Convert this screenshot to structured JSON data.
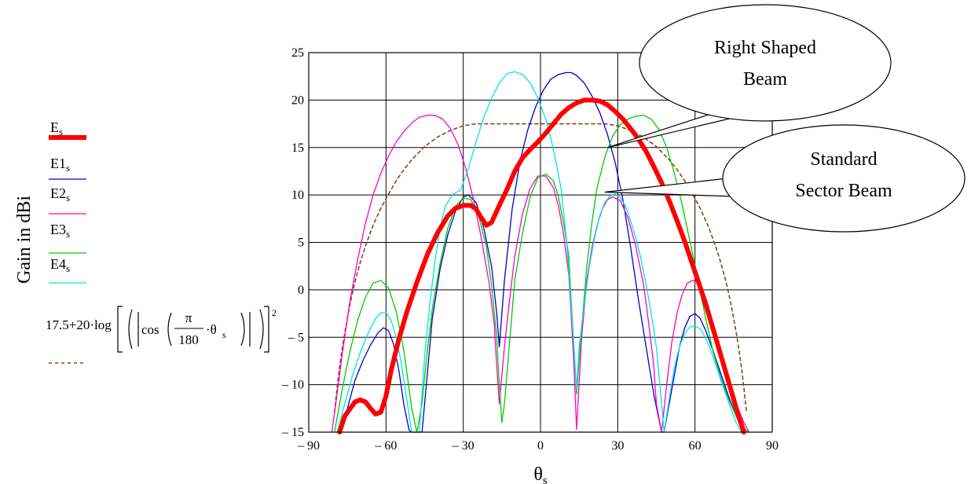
{
  "chart_data": {
    "type": "line",
    "xlabel": "θ",
    "xlabel_sub": "s",
    "ylabel": "Gain in dBi",
    "xlim": [
      -90,
      90
    ],
    "ylim": [
      -15,
      25
    ],
    "xticks": [
      -90,
      -60,
      -30,
      0,
      30,
      60,
      90
    ],
    "yticks": [
      -15,
      -10,
      -5,
      0,
      5,
      10,
      15,
      20,
      25
    ],
    "xtick_labels": [
      "– 90",
      "– 60",
      "– 30",
      "0",
      "30",
      "60",
      "90"
    ],
    "ytick_labels": [
      "– 15",
      "– 10",
      "– 5",
      "0",
      "5",
      "10",
      "15",
      "20",
      "25"
    ],
    "grid": true,
    "legend_position": "left",
    "series": [
      {
        "name": "E",
        "name_sub": "s",
        "color": "#ff0000",
        "width": 6,
        "dash": "",
        "x": [
          -78,
          -76,
          -72,
          -70,
          -68,
          -66,
          -64,
          -62,
          -60,
          -58,
          -55,
          -52,
          -48,
          -44,
          -40,
          -36,
          -33,
          -30,
          -27,
          -25,
          -23,
          -21,
          -19,
          -16,
          -13,
          -10,
          -7,
          -4,
          -1,
          2,
          5,
          8,
          11,
          14,
          17,
          20,
          23,
          26,
          29,
          32,
          35,
          38,
          41,
          44,
          47,
          50,
          53,
          56,
          59,
          62,
          65,
          68,
          71,
          74,
          77,
          79
        ],
        "y": [
          -15,
          -13.3,
          -11.8,
          -11.6,
          -11.8,
          -12.5,
          -13.1,
          -12.9,
          -11.2,
          -8.5,
          -5.2,
          -2.4,
          0.8,
          3.7,
          6,
          7.8,
          8.6,
          8.9,
          8.9,
          8.5,
          7.6,
          6.8,
          7.1,
          8.9,
          10.6,
          12.5,
          13.9,
          14.8,
          15.6,
          16.5,
          17.5,
          18.5,
          19.2,
          19.7,
          20,
          20,
          19.9,
          19.5,
          18.8,
          18,
          17,
          15.9,
          14.6,
          13,
          11.3,
          9.4,
          7.3,
          5.1,
          2.7,
          0.3,
          -2.3,
          -5,
          -7.8,
          -10.6,
          -13.4,
          -15
        ]
      },
      {
        "name": "E1",
        "name_sub": "s",
        "color": "#0000cc",
        "width": 1.3,
        "dash": "",
        "x": [
          -78,
          -75,
          -72,
          -69,
          -66,
          -63,
          -61,
          -59,
          -57,
          -55,
          -53,
          -51,
          -50,
          -46,
          -44,
          -42,
          -39,
          -36,
          -33,
          -30,
          -28,
          -25,
          -22,
          -19,
          -17,
          -16,
          -14,
          -11,
          -8,
          -5,
          -2,
          1,
          4,
          7,
          10,
          12,
          14,
          17,
          20,
          23,
          26,
          29,
          32,
          35,
          38,
          41,
          44,
          47,
          48,
          52,
          54,
          56,
          58,
          60,
          62,
          64,
          67,
          70,
          73,
          76,
          79
        ],
        "y": [
          -15,
          -12.5,
          -9.5,
          -7.5,
          -5.8,
          -4.5,
          -4,
          -4.3,
          -5.8,
          -8.5,
          -12.2,
          -14.8,
          -15,
          -15,
          -9,
          -3,
          2.2,
          5.8,
          8.3,
          9.8,
          10,
          9.2,
          6.5,
          2.5,
          -2.5,
          -6,
          1,
          8.5,
          13.5,
          16.8,
          19.2,
          21,
          22.2,
          22.7,
          22.9,
          22.9,
          22.6,
          21.8,
          20.4,
          18.7,
          16.4,
          13.4,
          9.5,
          4.5,
          -1,
          -6,
          -11,
          -15,
          -15,
          -9,
          -6,
          -4,
          -2.8,
          -2.5,
          -3,
          -4.2,
          -6.4,
          -8.8,
          -11.2,
          -13.3,
          -15
        ]
      },
      {
        "name": "E2",
        "name_sub": "s",
        "color": "#ff00cc",
        "width": 1.3,
        "dash": "",
        "x": [
          -81,
          -79,
          -77,
          -74,
          -71,
          -68,
          -65,
          -62,
          -59,
          -56,
          -53,
          -50,
          -47,
          -44,
          -41,
          -38,
          -35,
          -32,
          -29,
          -26,
          -23,
          -20,
          -18,
          -17,
          -16,
          -14,
          -12,
          -10,
          -7,
          -4,
          -1,
          2,
          5,
          7,
          9,
          11,
          12,
          13,
          14,
          16,
          18,
          20,
          22,
          24,
          26,
          28,
          31,
          34,
          37,
          40,
          42,
          44,
          45,
          47,
          49,
          51,
          53,
          55,
          57,
          59,
          61,
          63,
          65,
          67,
          70,
          73,
          76,
          79,
          81
        ],
        "y": [
          -15,
          -11,
          -6.8,
          -1.2,
          3.2,
          7,
          10,
          12.3,
          14.1,
          15.6,
          16.7,
          17.6,
          18.2,
          18.4,
          18.4,
          18,
          17,
          15.3,
          12.8,
          9.5,
          5.5,
          0.8,
          -3.5,
          -8,
          -12,
          -6,
          -1,
          3.5,
          8,
          10.7,
          12,
          12,
          10.8,
          8.8,
          5.8,
          1.5,
          -3,
          -8,
          -14.7,
          -5,
          1,
          4.5,
          6.8,
          8.5,
          9.5,
          9.8,
          9.4,
          7.6,
          4.6,
          0.6,
          -3.5,
          -8,
          -12,
          -15,
          -10,
          -5.5,
          -2.5,
          -0.5,
          0.7,
          1,
          0.8,
          0,
          -1.5,
          -3.5,
          -6.5,
          -9.5,
          -12,
          -14,
          -15
        ]
      },
      {
        "name": "E3",
        "name_sub": "s",
        "color": "#00cc00",
        "width": 1.3,
        "dash": "",
        "x": [
          -80,
          -77,
          -74,
          -71,
          -68,
          -65,
          -62,
          -59,
          -56,
          -53,
          -50,
          -48,
          -46,
          -44,
          -42,
          -39,
          -36,
          -33,
          -30,
          -27,
          -24,
          -21,
          -19,
          -17,
          -16,
          -15,
          -14,
          -12,
          -10,
          -7,
          -4,
          -1,
          2,
          5,
          7,
          9,
          11,
          12,
          13,
          14,
          16,
          18,
          20,
          22,
          25,
          28,
          31,
          34,
          37,
          40,
          43,
          46,
          49,
          52,
          55,
          58,
          61,
          64,
          67,
          70,
          73,
          76,
          79,
          81
        ],
        "y": [
          -15,
          -10.5,
          -6.5,
          -3.2,
          -0.8,
          0.7,
          1,
          0.2,
          -2.3,
          -6.5,
          -12.5,
          -15,
          -12,
          -6.5,
          -2,
          2.8,
          6.5,
          8.8,
          9.7,
          9.5,
          7.8,
          4.5,
          0.5,
          -5,
          -10,
          -14,
          -12,
          -5.5,
          1,
          6,
          9.8,
          11.8,
          12.2,
          11.5,
          9.8,
          7,
          3.5,
          -1.5,
          -6,
          -11,
          -4,
          2.5,
          7.2,
          10.8,
          14,
          16.2,
          17.4,
          18,
          18.3,
          18.4,
          18,
          16.9,
          15,
          12.3,
          9,
          5.2,
          1.2,
          -2.8,
          -6.5,
          -9.2,
          -11.5,
          -13.3,
          -14.6,
          -15
        ]
      },
      {
        "name": "E4",
        "name_sub": "s",
        "color": "#00e5e5",
        "width": 1.3,
        "dash": "",
        "x": [
          -79,
          -76,
          -73,
          -70,
          -67,
          -64,
          -62,
          -60,
          -58,
          -56,
          -54,
          -52,
          -50,
          -48,
          -47,
          -45,
          -43,
          -41,
          -39,
          -37,
          -34,
          -31,
          -28,
          -25,
          -22,
          -19,
          -16,
          -13,
          -10,
          -7,
          -4,
          -1,
          2,
          4,
          6,
          8,
          9,
          10,
          11,
          12,
          13,
          14,
          15,
          17,
          19,
          21,
          23,
          25,
          27,
          29,
          31,
          33,
          35,
          37,
          39,
          41,
          43,
          45,
          46,
          47,
          48,
          50,
          52,
          54,
          56,
          58,
          60,
          62,
          64,
          66,
          68,
          70,
          73,
          76,
          78
        ],
        "y": [
          -15,
          -12,
          -9,
          -6.6,
          -4.6,
          -3,
          -2.4,
          -2.4,
          -3.2,
          -5,
          -7.8,
          -11.5,
          -15,
          -15,
          -15,
          -7,
          -1.5,
          3,
          6.5,
          8.8,
          10.1,
          10.5,
          12.8,
          15.6,
          18.2,
          20.2,
          21.8,
          22.8,
          23,
          22.7,
          21.8,
          20.2,
          18,
          16,
          13.5,
          10.7,
          8.2,
          5.5,
          2,
          -2,
          -6,
          -10.5,
          -6,
          -1.5,
          2.5,
          5.5,
          7.8,
          9.2,
          9.9,
          10.1,
          9.7,
          8.8,
          7.3,
          5.5,
          3.3,
          0.6,
          -2.5,
          -6,
          -9,
          -12,
          -15,
          -11.5,
          -8.2,
          -6,
          -4.6,
          -3.9,
          -3.8,
          -4.1,
          -5,
          -6.3,
          -7.8,
          -9.5,
          -11.8,
          -14,
          -15
        ]
      },
      {
        "name": "17.5+20·log[(|cos(π/180·θs)|)²]",
        "color": "#8b4513",
        "width": 1.6,
        "dash": "4,4",
        "x": [
          -80,
          -79,
          -78,
          -77,
          -76,
          -75,
          -74,
          -73,
          -72,
          -70,
          -68,
          -65,
          -62,
          -59,
          -56,
          -53,
          -50,
          -45,
          -40,
          -35,
          -30,
          -25,
          -20,
          -15,
          -10,
          -5,
          0,
          5,
          10,
          15,
          20,
          25,
          30,
          35,
          40,
          45,
          50,
          53,
          56,
          59,
          62,
          65,
          68,
          70,
          72,
          73,
          74,
          75,
          76,
          77,
          78,
          79,
          80
        ],
        "y": [
          -12.9,
          -10.3,
          -8.1,
          -6.2,
          -4.5,
          -3,
          -1.6,
          -0.3,
          0.9,
          2.9,
          4.6,
          6.8,
          8.6,
          10.1,
          11.5,
          12.7,
          13.7,
          15.1,
          16.1,
          16.8,
          17.3,
          17.5,
          17.5,
          17.5,
          17.5,
          17.5,
          17.5,
          17.5,
          17.5,
          17.5,
          17.5,
          17.5,
          17.3,
          16.8,
          16.1,
          15.1,
          13.7,
          12.7,
          11.5,
          10.1,
          8.6,
          6.8,
          4.6,
          2.9,
          0.9,
          -0.3,
          -1.6,
          -3,
          -4.5,
          -6.2,
          -8.1,
          -10.3,
          -12.9
        ]
      }
    ],
    "annotations": [
      {
        "lines": [
          "Right Shaped",
          "Beam"
        ],
        "target_x": 26,
        "target_y": 15
      },
      {
        "lines": [
          "Standard",
          "Sector Beam"
        ],
        "target_x": 25,
        "target_y": 10.3
      }
    ]
  }
}
